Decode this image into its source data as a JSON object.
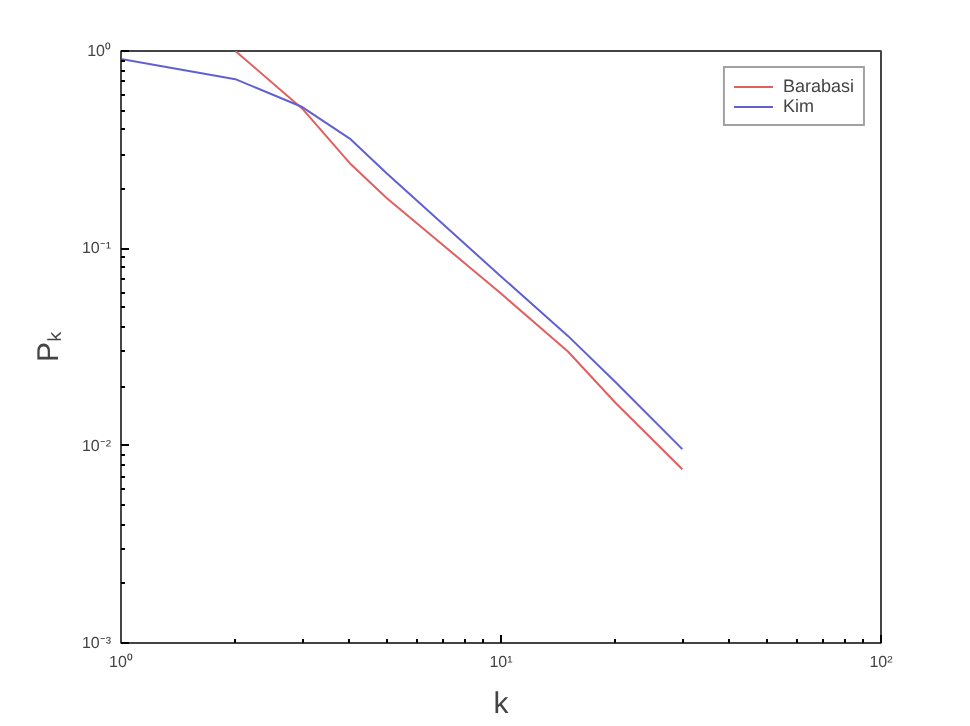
{
  "chart_data": {
    "type": "line",
    "xlabel": "k",
    "ylabel": "Pₖ",
    "log": "xy",
    "grid": false,
    "legend": "top right",
    "xlim": [
      1,
      100
    ],
    "ylim": [
      0.001,
      1
    ],
    "xticks": [
      {
        "value": 1,
        "label": "10⁰"
      },
      {
        "value": 10,
        "label": "10¹"
      },
      {
        "value": 100,
        "label": "10²"
      }
    ],
    "yticks": [
      {
        "value": 0.001,
        "label": "10⁻³"
      },
      {
        "value": 0.01,
        "label": "10⁻²"
      },
      {
        "value": 0.1,
        "label": "10⁻¹"
      },
      {
        "value": 1,
        "label": "10⁰"
      }
    ],
    "series": [
      {
        "name": "Barabasi",
        "color": "#e06060",
        "x": [
          2,
          3,
          4,
          5,
          10,
          15,
          20,
          30
        ],
        "values": [
          1,
          0.51,
          0.27,
          0.18,
          0.059,
          0.03,
          0.0165,
          0.0076
        ]
      },
      {
        "name": "Kim",
        "color": "#6060d0",
        "x": [
          1,
          2,
          3,
          4,
          5,
          10,
          15,
          20,
          30
        ],
        "values": [
          0.91,
          0.72,
          0.52,
          0.36,
          0.24,
          0.072,
          0.036,
          0.021,
          0.0096
        ]
      }
    ]
  }
}
